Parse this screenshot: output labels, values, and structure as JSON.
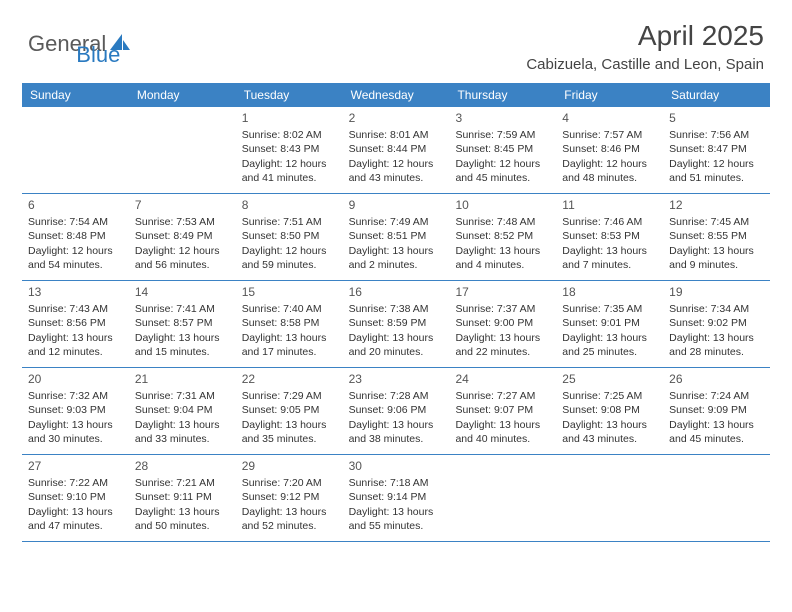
{
  "logo": {
    "part1": "General",
    "part2": "Blue"
  },
  "title": "April 2025",
  "location": "Cabizuela, Castille and Leon, Spain",
  "colors": {
    "header_bg": "#3b82c4",
    "header_fg": "#ffffff",
    "row_border": "#3b82c4",
    "text": "#333333",
    "logo_gray": "#5a5a5a",
    "logo_blue": "#2a7ac0",
    "page_bg": "#ffffff"
  },
  "day_labels": [
    "Sunday",
    "Monday",
    "Tuesday",
    "Wednesday",
    "Thursday",
    "Friday",
    "Saturday"
  ],
  "weeks": [
    [
      {
        "n": "",
        "sunrise": "",
        "sunset": "",
        "daylight": ""
      },
      {
        "n": "",
        "sunrise": "",
        "sunset": "",
        "daylight": ""
      },
      {
        "n": "1",
        "sunrise": "Sunrise: 8:02 AM",
        "sunset": "Sunset: 8:43 PM",
        "daylight": "Daylight: 12 hours and 41 minutes."
      },
      {
        "n": "2",
        "sunrise": "Sunrise: 8:01 AM",
        "sunset": "Sunset: 8:44 PM",
        "daylight": "Daylight: 12 hours and 43 minutes."
      },
      {
        "n": "3",
        "sunrise": "Sunrise: 7:59 AM",
        "sunset": "Sunset: 8:45 PM",
        "daylight": "Daylight: 12 hours and 45 minutes."
      },
      {
        "n": "4",
        "sunrise": "Sunrise: 7:57 AM",
        "sunset": "Sunset: 8:46 PM",
        "daylight": "Daylight: 12 hours and 48 minutes."
      },
      {
        "n": "5",
        "sunrise": "Sunrise: 7:56 AM",
        "sunset": "Sunset: 8:47 PM",
        "daylight": "Daylight: 12 hours and 51 minutes."
      }
    ],
    [
      {
        "n": "6",
        "sunrise": "Sunrise: 7:54 AM",
        "sunset": "Sunset: 8:48 PM",
        "daylight": "Daylight: 12 hours and 54 minutes."
      },
      {
        "n": "7",
        "sunrise": "Sunrise: 7:53 AM",
        "sunset": "Sunset: 8:49 PM",
        "daylight": "Daylight: 12 hours and 56 minutes."
      },
      {
        "n": "8",
        "sunrise": "Sunrise: 7:51 AM",
        "sunset": "Sunset: 8:50 PM",
        "daylight": "Daylight: 12 hours and 59 minutes."
      },
      {
        "n": "9",
        "sunrise": "Sunrise: 7:49 AM",
        "sunset": "Sunset: 8:51 PM",
        "daylight": "Daylight: 13 hours and 2 minutes."
      },
      {
        "n": "10",
        "sunrise": "Sunrise: 7:48 AM",
        "sunset": "Sunset: 8:52 PM",
        "daylight": "Daylight: 13 hours and 4 minutes."
      },
      {
        "n": "11",
        "sunrise": "Sunrise: 7:46 AM",
        "sunset": "Sunset: 8:53 PM",
        "daylight": "Daylight: 13 hours and 7 minutes."
      },
      {
        "n": "12",
        "sunrise": "Sunrise: 7:45 AM",
        "sunset": "Sunset: 8:55 PM",
        "daylight": "Daylight: 13 hours and 9 minutes."
      }
    ],
    [
      {
        "n": "13",
        "sunrise": "Sunrise: 7:43 AM",
        "sunset": "Sunset: 8:56 PM",
        "daylight": "Daylight: 13 hours and 12 minutes."
      },
      {
        "n": "14",
        "sunrise": "Sunrise: 7:41 AM",
        "sunset": "Sunset: 8:57 PM",
        "daylight": "Daylight: 13 hours and 15 minutes."
      },
      {
        "n": "15",
        "sunrise": "Sunrise: 7:40 AM",
        "sunset": "Sunset: 8:58 PM",
        "daylight": "Daylight: 13 hours and 17 minutes."
      },
      {
        "n": "16",
        "sunrise": "Sunrise: 7:38 AM",
        "sunset": "Sunset: 8:59 PM",
        "daylight": "Daylight: 13 hours and 20 minutes."
      },
      {
        "n": "17",
        "sunrise": "Sunrise: 7:37 AM",
        "sunset": "Sunset: 9:00 PM",
        "daylight": "Daylight: 13 hours and 22 minutes."
      },
      {
        "n": "18",
        "sunrise": "Sunrise: 7:35 AM",
        "sunset": "Sunset: 9:01 PM",
        "daylight": "Daylight: 13 hours and 25 minutes."
      },
      {
        "n": "19",
        "sunrise": "Sunrise: 7:34 AM",
        "sunset": "Sunset: 9:02 PM",
        "daylight": "Daylight: 13 hours and 28 minutes."
      }
    ],
    [
      {
        "n": "20",
        "sunrise": "Sunrise: 7:32 AM",
        "sunset": "Sunset: 9:03 PM",
        "daylight": "Daylight: 13 hours and 30 minutes."
      },
      {
        "n": "21",
        "sunrise": "Sunrise: 7:31 AM",
        "sunset": "Sunset: 9:04 PM",
        "daylight": "Daylight: 13 hours and 33 minutes."
      },
      {
        "n": "22",
        "sunrise": "Sunrise: 7:29 AM",
        "sunset": "Sunset: 9:05 PM",
        "daylight": "Daylight: 13 hours and 35 minutes."
      },
      {
        "n": "23",
        "sunrise": "Sunrise: 7:28 AM",
        "sunset": "Sunset: 9:06 PM",
        "daylight": "Daylight: 13 hours and 38 minutes."
      },
      {
        "n": "24",
        "sunrise": "Sunrise: 7:27 AM",
        "sunset": "Sunset: 9:07 PM",
        "daylight": "Daylight: 13 hours and 40 minutes."
      },
      {
        "n": "25",
        "sunrise": "Sunrise: 7:25 AM",
        "sunset": "Sunset: 9:08 PM",
        "daylight": "Daylight: 13 hours and 43 minutes."
      },
      {
        "n": "26",
        "sunrise": "Sunrise: 7:24 AM",
        "sunset": "Sunset: 9:09 PM",
        "daylight": "Daylight: 13 hours and 45 minutes."
      }
    ],
    [
      {
        "n": "27",
        "sunrise": "Sunrise: 7:22 AM",
        "sunset": "Sunset: 9:10 PM",
        "daylight": "Daylight: 13 hours and 47 minutes."
      },
      {
        "n": "28",
        "sunrise": "Sunrise: 7:21 AM",
        "sunset": "Sunset: 9:11 PM",
        "daylight": "Daylight: 13 hours and 50 minutes."
      },
      {
        "n": "29",
        "sunrise": "Sunrise: 7:20 AM",
        "sunset": "Sunset: 9:12 PM",
        "daylight": "Daylight: 13 hours and 52 minutes."
      },
      {
        "n": "30",
        "sunrise": "Sunrise: 7:18 AM",
        "sunset": "Sunset: 9:14 PM",
        "daylight": "Daylight: 13 hours and 55 minutes."
      },
      {
        "n": "",
        "sunrise": "",
        "sunset": "",
        "daylight": ""
      },
      {
        "n": "",
        "sunrise": "",
        "sunset": "",
        "daylight": ""
      },
      {
        "n": "",
        "sunrise": "",
        "sunset": "",
        "daylight": ""
      }
    ]
  ]
}
